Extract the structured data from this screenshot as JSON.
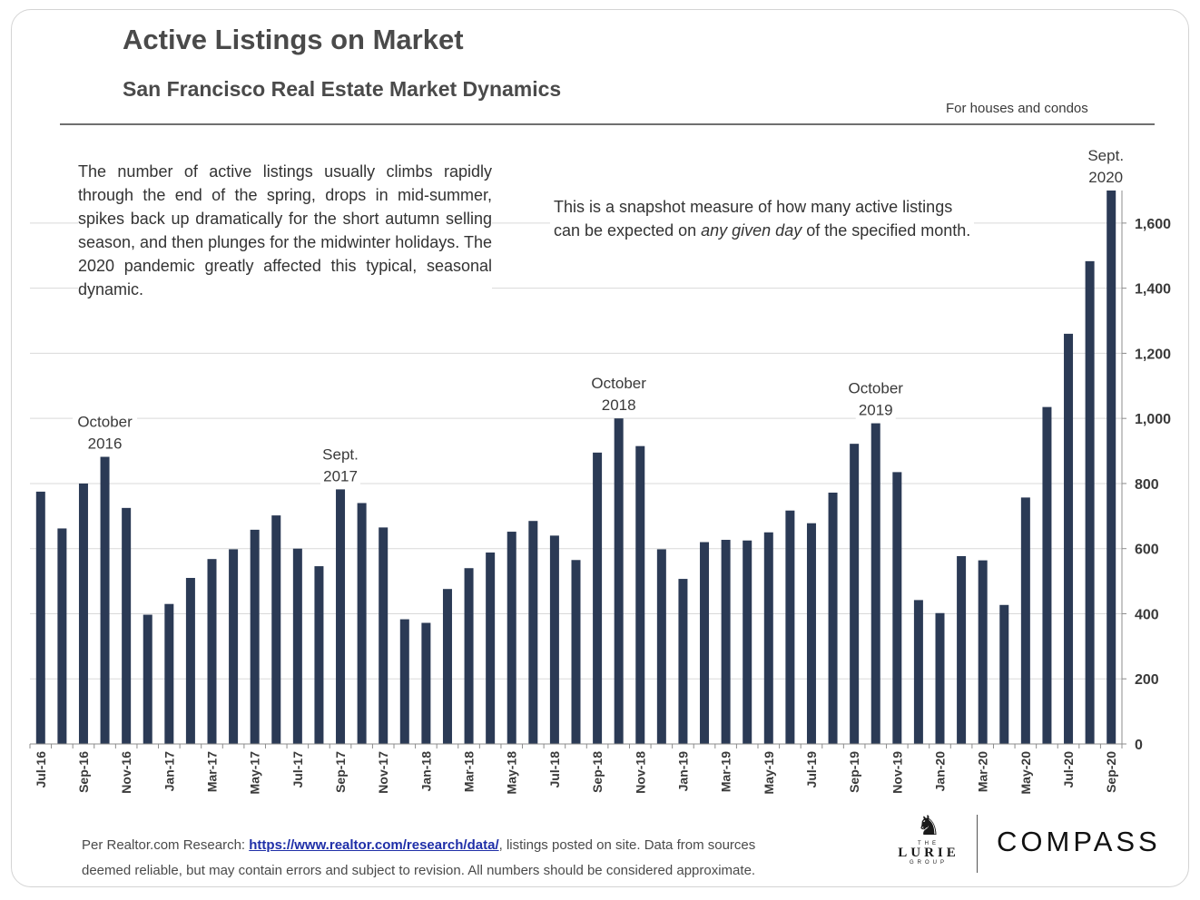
{
  "header": {
    "title": "Active Listings on Market",
    "subtitle": "San Francisco Real Estate Market Dynamics",
    "scope": "For houses and condos"
  },
  "notes": {
    "left": "The number of active listings usually climbs rapidly through the end of the spring, drops in mid-summer, spikes back up dramatically for the short autumn selling season, and then plunges for the midwinter holidays. The 2020 pandemic greatly affected this typical, seasonal dynamic.",
    "right_line1": "This is a snapshot measure of how many active listings",
    "right_pre": "can be expected on ",
    "right_italic": "any given day",
    "right_post": " of the specified month."
  },
  "footer": {
    "line1_pre": "Per Realtor.com Research: ",
    "link": "https://www.realtor.com/research/data/",
    "line1_post": ", listings posted on site. Data from sources",
    "line2": "deemed reliable, but may contain errors and subject to revision. All numbers should be considered approximate."
  },
  "logos": {
    "lurie_the": "THE",
    "lurie_name": "LURIE",
    "lurie_group": "GROUP",
    "compass": "COMPASS"
  },
  "colors": {
    "bar": "#2b3a55",
    "grid": "#d9d9d9",
    "axis": "#8c8c8c",
    "text": "#3a3a3a"
  },
  "chart_data": {
    "type": "bar",
    "categories": [
      "Jul-16",
      "Aug-16",
      "Sep-16",
      "Oct-16",
      "Nov-16",
      "Dec-16",
      "Jan-17",
      "Feb-17",
      "Mar-17",
      "Apr-17",
      "May-17",
      "Jun-17",
      "Jul-17",
      "Aug-17",
      "Sep-17",
      "Oct-17",
      "Nov-17",
      "Dec-17",
      "Jan-18",
      "Feb-18",
      "Mar-18",
      "Apr-18",
      "May-18",
      "Jun-18",
      "Jul-18",
      "Aug-18",
      "Sep-18",
      "Oct-18",
      "Nov-18",
      "Dec-18",
      "Jan-19",
      "Feb-19",
      "Mar-19",
      "Apr-19",
      "May-19",
      "Jun-19",
      "Jul-19",
      "Aug-19",
      "Sep-19",
      "Oct-19",
      "Nov-19",
      "Dec-19",
      "Jan-20",
      "Feb-20",
      "Mar-20",
      "Apr-20",
      "May-20",
      "Jun-20",
      "Jul-20",
      "Aug-20",
      "Sep-20"
    ],
    "tick_labels": [
      "Jul-16",
      "Sep-16",
      "Nov-16",
      "Jan-17",
      "Mar-17",
      "May-17",
      "Jul-17",
      "Sep-17",
      "Nov-17",
      "Jan-18",
      "Mar-18",
      "May-18",
      "Jul-18",
      "Sep-18",
      "Nov-18",
      "Jan-19",
      "Mar-19",
      "May-19",
      "Jul-19",
      "Sep-19",
      "Nov-19",
      "Jan-20",
      "Mar-20",
      "May-20",
      "Jul-20",
      "Sep-20"
    ],
    "values": [
      775,
      662,
      800,
      882,
      725,
      397,
      430,
      510,
      568,
      598,
      658,
      702,
      600,
      546,
      782,
      740,
      665,
      383,
      372,
      476,
      540,
      588,
      652,
      685,
      640,
      565,
      895,
      1000,
      915,
      598,
      507,
      620,
      627,
      625,
      650,
      717,
      678,
      772,
      922,
      985,
      835,
      442,
      402,
      577,
      564,
      427,
      757,
      1035,
      1260,
      1483,
      1700
    ],
    "y_axis_position": "right",
    "ylim": [
      0,
      1700
    ],
    "y_ticks": [
      0,
      200,
      400,
      600,
      800,
      1000,
      1200,
      1400,
      1600
    ],
    "y_tick_labels": [
      "0",
      "200",
      "400",
      "600",
      "800",
      "1,000",
      "1,200",
      "1,400",
      "1,600"
    ],
    "grid": true,
    "annotations": [
      {
        "category": "Oct-16",
        "line1": "October",
        "line2": "2016"
      },
      {
        "category": "Sep-17",
        "line1": "Sept.",
        "line2": "2017"
      },
      {
        "category": "Oct-18",
        "line1": "October",
        "line2": "2018"
      },
      {
        "category": "Oct-19",
        "line1": "October",
        "line2": "2019"
      },
      {
        "category": "Sep-20",
        "line1": "Sept.",
        "line2": "2020"
      }
    ]
  }
}
